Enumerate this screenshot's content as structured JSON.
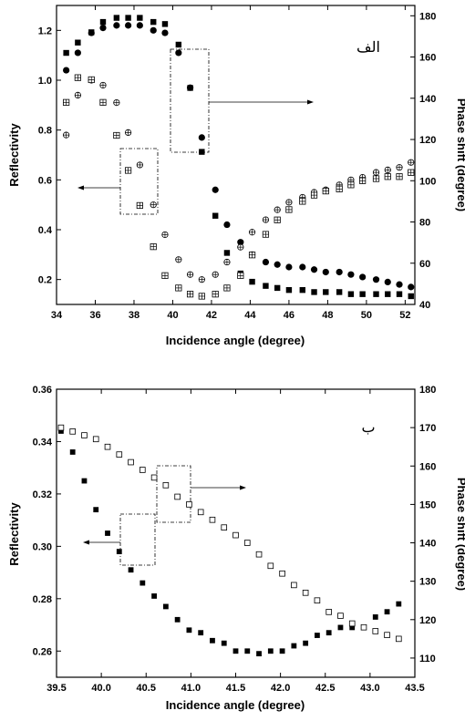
{
  "chart_data": [
    {
      "type": "scatter",
      "panel_label": "الف",
      "xlabel": "Incidence angle (degree)",
      "ylabel_left": "Reflectivity",
      "ylabel_right": "Phase shift (degree)",
      "xlim": [
        34,
        52.5
      ],
      "ylim_left": [
        0.1,
        1.3
      ],
      "ylim_right": [
        40,
        185
      ],
      "x_ticks": [
        "34",
        "36",
        "38",
        "40",
        "42",
        "44",
        "46",
        "48",
        "50",
        "52"
      ],
      "y_ticks_left": [
        "0.2",
        "0.4",
        "0.6",
        "0.8",
        "1.0",
        "1.2"
      ],
      "y_ticks_right": [
        "40",
        "60",
        "80",
        "100",
        "120",
        "140",
        "160",
        "180"
      ],
      "series": [
        {
          "axis": "left",
          "marker": "filled-circle",
          "x": [
            34.5,
            35.1,
            35.8,
            36.4,
            37.1,
            37.7,
            38.3,
            39.0,
            39.6,
            40.3,
            40.9,
            41.5,
            42.2,
            42.8,
            43.5,
            44.1,
            44.8,
            45.4,
            46.0,
            46.7,
            47.3,
            47.9,
            48.6,
            49.2,
            49.8,
            50.5,
            51.1,
            51.7,
            52.3
          ],
          "y": [
            1.04,
            1.11,
            1.19,
            1.21,
            1.22,
            1.22,
            1.22,
            1.2,
            1.19,
            1.11,
            0.97,
            0.77,
            0.56,
            0.42,
            0.35,
            0.3,
            0.27,
            0.26,
            0.25,
            0.25,
            0.24,
            0.23,
            0.23,
            0.22,
            0.21,
            0.2,
            0.19,
            0.18,
            0.17
          ]
        },
        {
          "axis": "left",
          "marker": "crossed-circle",
          "x": [
            34.5,
            35.1,
            35.8,
            36.4,
            37.1,
            37.7,
            38.3,
            39.0,
            39.6,
            40.3,
            40.9,
            41.5,
            42.2,
            42.8,
            43.5,
            44.1,
            44.8,
            45.4,
            46.0,
            46.7,
            47.3,
            47.9,
            48.6,
            49.2,
            49.8,
            50.5,
            51.1,
            51.7,
            52.3
          ],
          "y": [
            0.78,
            0.94,
            1.0,
            0.98,
            0.91,
            0.79,
            0.66,
            0.5,
            0.38,
            0.28,
            0.22,
            0.2,
            0.22,
            0.27,
            0.33,
            0.39,
            0.44,
            0.48,
            0.51,
            0.53,
            0.55,
            0.56,
            0.58,
            0.6,
            0.61,
            0.63,
            0.64,
            0.65,
            0.67
          ]
        },
        {
          "axis": "right",
          "marker": "filled-square",
          "x": [
            34.5,
            35.1,
            35.8,
            36.4,
            37.1,
            37.7,
            38.3,
            39.0,
            39.6,
            40.3,
            40.9,
            41.5,
            42.2,
            42.8,
            43.5,
            44.1,
            44.8,
            45.4,
            46.0,
            46.7,
            47.3,
            47.9,
            48.6,
            49.2,
            49.8,
            50.5,
            51.1,
            51.7,
            52.3
          ],
          "y": [
            162,
            167,
            172,
            177,
            179,
            179,
            179,
            177,
            176,
            166,
            145,
            114,
            83,
            65,
            55,
            51,
            49,
            48,
            47,
            47,
            46,
            46,
            46,
            45,
            45,
            45,
            45,
            45,
            44
          ]
        },
        {
          "axis": "right",
          "marker": "crossed-square",
          "x": [
            34.5,
            35.1,
            35.8,
            36.4,
            37.1,
            37.7,
            38.3,
            39.0,
            39.6,
            40.3,
            40.9,
            41.5,
            42.2,
            42.8,
            43.5,
            44.1,
            44.8,
            45.4,
            46.0,
            46.7,
            47.3,
            47.9,
            48.6,
            49.2,
            49.8,
            50.5,
            51.1,
            51.7,
            52.3
          ],
          "y": [
            138,
            150,
            149,
            138,
            122,
            105,
            88,
            68,
            54,
            48,
            45,
            44,
            45,
            48,
            54,
            64,
            74,
            81,
            86,
            90,
            93,
            95,
            96,
            98,
            100,
            101,
            102,
            102,
            104
          ]
        }
      ]
    },
    {
      "type": "scatter",
      "panel_label": "ب",
      "xlabel": "Incidence angle (degree)",
      "ylabel_left": "Reflectivity",
      "ylabel_right": "Phase shift (degree)",
      "xlim": [
        39.5,
        43.5
      ],
      "ylim_left": [
        0.25,
        0.36
      ],
      "ylim_right": [
        105,
        180
      ],
      "x_ticks": [
        "39.5",
        "40.0",
        "40.5",
        "41.0",
        "41.5",
        "42.0",
        "42.5",
        "43.0",
        "43.5"
      ],
      "y_ticks_left": [
        "0.26",
        "0.28",
        "0.30",
        "0.32",
        "0.34",
        "0.36"
      ],
      "y_ticks_right": [
        "110",
        "120",
        "130",
        "140",
        "150",
        "160",
        "170",
        "180"
      ],
      "series": [
        {
          "axis": "left",
          "marker": "filled-square",
          "x": [
            39.55,
            39.68,
            39.81,
            39.94,
            40.07,
            40.2,
            40.33,
            40.46,
            40.59,
            40.72,
            40.85,
            40.98,
            41.11,
            41.24,
            41.37,
            41.5,
            41.63,
            41.76,
            41.89,
            42.02,
            42.15,
            42.28,
            42.41,
            42.54,
            42.67,
            42.8,
            42.93,
            43.06,
            43.19,
            43.32
          ],
          "y": [
            0.344,
            0.336,
            0.325,
            0.314,
            0.305,
            0.298,
            0.291,
            0.286,
            0.281,
            0.277,
            0.272,
            0.268,
            0.267,
            0.264,
            0.263,
            0.26,
            0.26,
            0.259,
            0.26,
            0.26,
            0.262,
            0.263,
            0.266,
            0.267,
            0.269,
            0.269,
            0.269,
            0.273,
            0.275,
            0.278
          ]
        },
        {
          "axis": "right",
          "marker": "open-square",
          "x": [
            39.55,
            39.68,
            39.81,
            39.94,
            40.07,
            40.2,
            40.33,
            40.46,
            40.59,
            40.72,
            40.85,
            40.98,
            41.11,
            41.24,
            41.37,
            41.5,
            41.63,
            41.76,
            41.89,
            42.02,
            42.15,
            42.28,
            42.41,
            42.54,
            42.67,
            42.8,
            42.93,
            43.06,
            43.19,
            43.32
          ],
          "y": [
            170,
            169,
            168,
            167,
            165,
            163,
            161,
            159,
            157,
            155,
            152,
            150,
            148,
            146,
            144,
            142,
            140,
            137,
            134,
            132,
            129,
            127,
            125,
            122,
            121,
            119,
            118,
            117,
            116,
            115
          ]
        }
      ]
    }
  ]
}
